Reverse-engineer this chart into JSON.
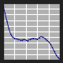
{
  "x": [
    0,
    1,
    2,
    3,
    4,
    5,
    6,
    7,
    8,
    9,
    10,
    11,
    12,
    13,
    14,
    15,
    16,
    17,
    18,
    19,
    20,
    21,
    22,
    23,
    24,
    25,
    26,
    27,
    28,
    29,
    30
  ],
  "y": [
    9.5,
    8.2,
    6.8,
    5.5,
    4.5,
    4.0,
    3.8,
    3.7,
    3.6,
    3.5,
    3.5,
    3.6,
    3.5,
    3.4,
    3.6,
    3.7,
    3.8,
    3.7,
    3.6,
    3.9,
    4.1,
    4.0,
    3.8,
    3.5,
    3.2,
    2.8,
    2.2,
    1.5,
    0.9,
    0.4,
    0.1
  ],
  "line_color": "#00008B",
  "marker_color": "#00008B",
  "marker_style": "o",
  "marker_size": 0.8,
  "line_width": 0.6,
  "background_color": "#B0B0B0",
  "grid_color": "#FFFFFF",
  "border_color": "#222222",
  "xlim": [
    0,
    30
  ],
  "ylim": [
    0,
    10
  ],
  "grid_linewidth": 0.8,
  "n_xgrid": 5,
  "n_ygrid": 10,
  "figsize": [
    0.8,
    0.8
  ],
  "dpi": 100
}
